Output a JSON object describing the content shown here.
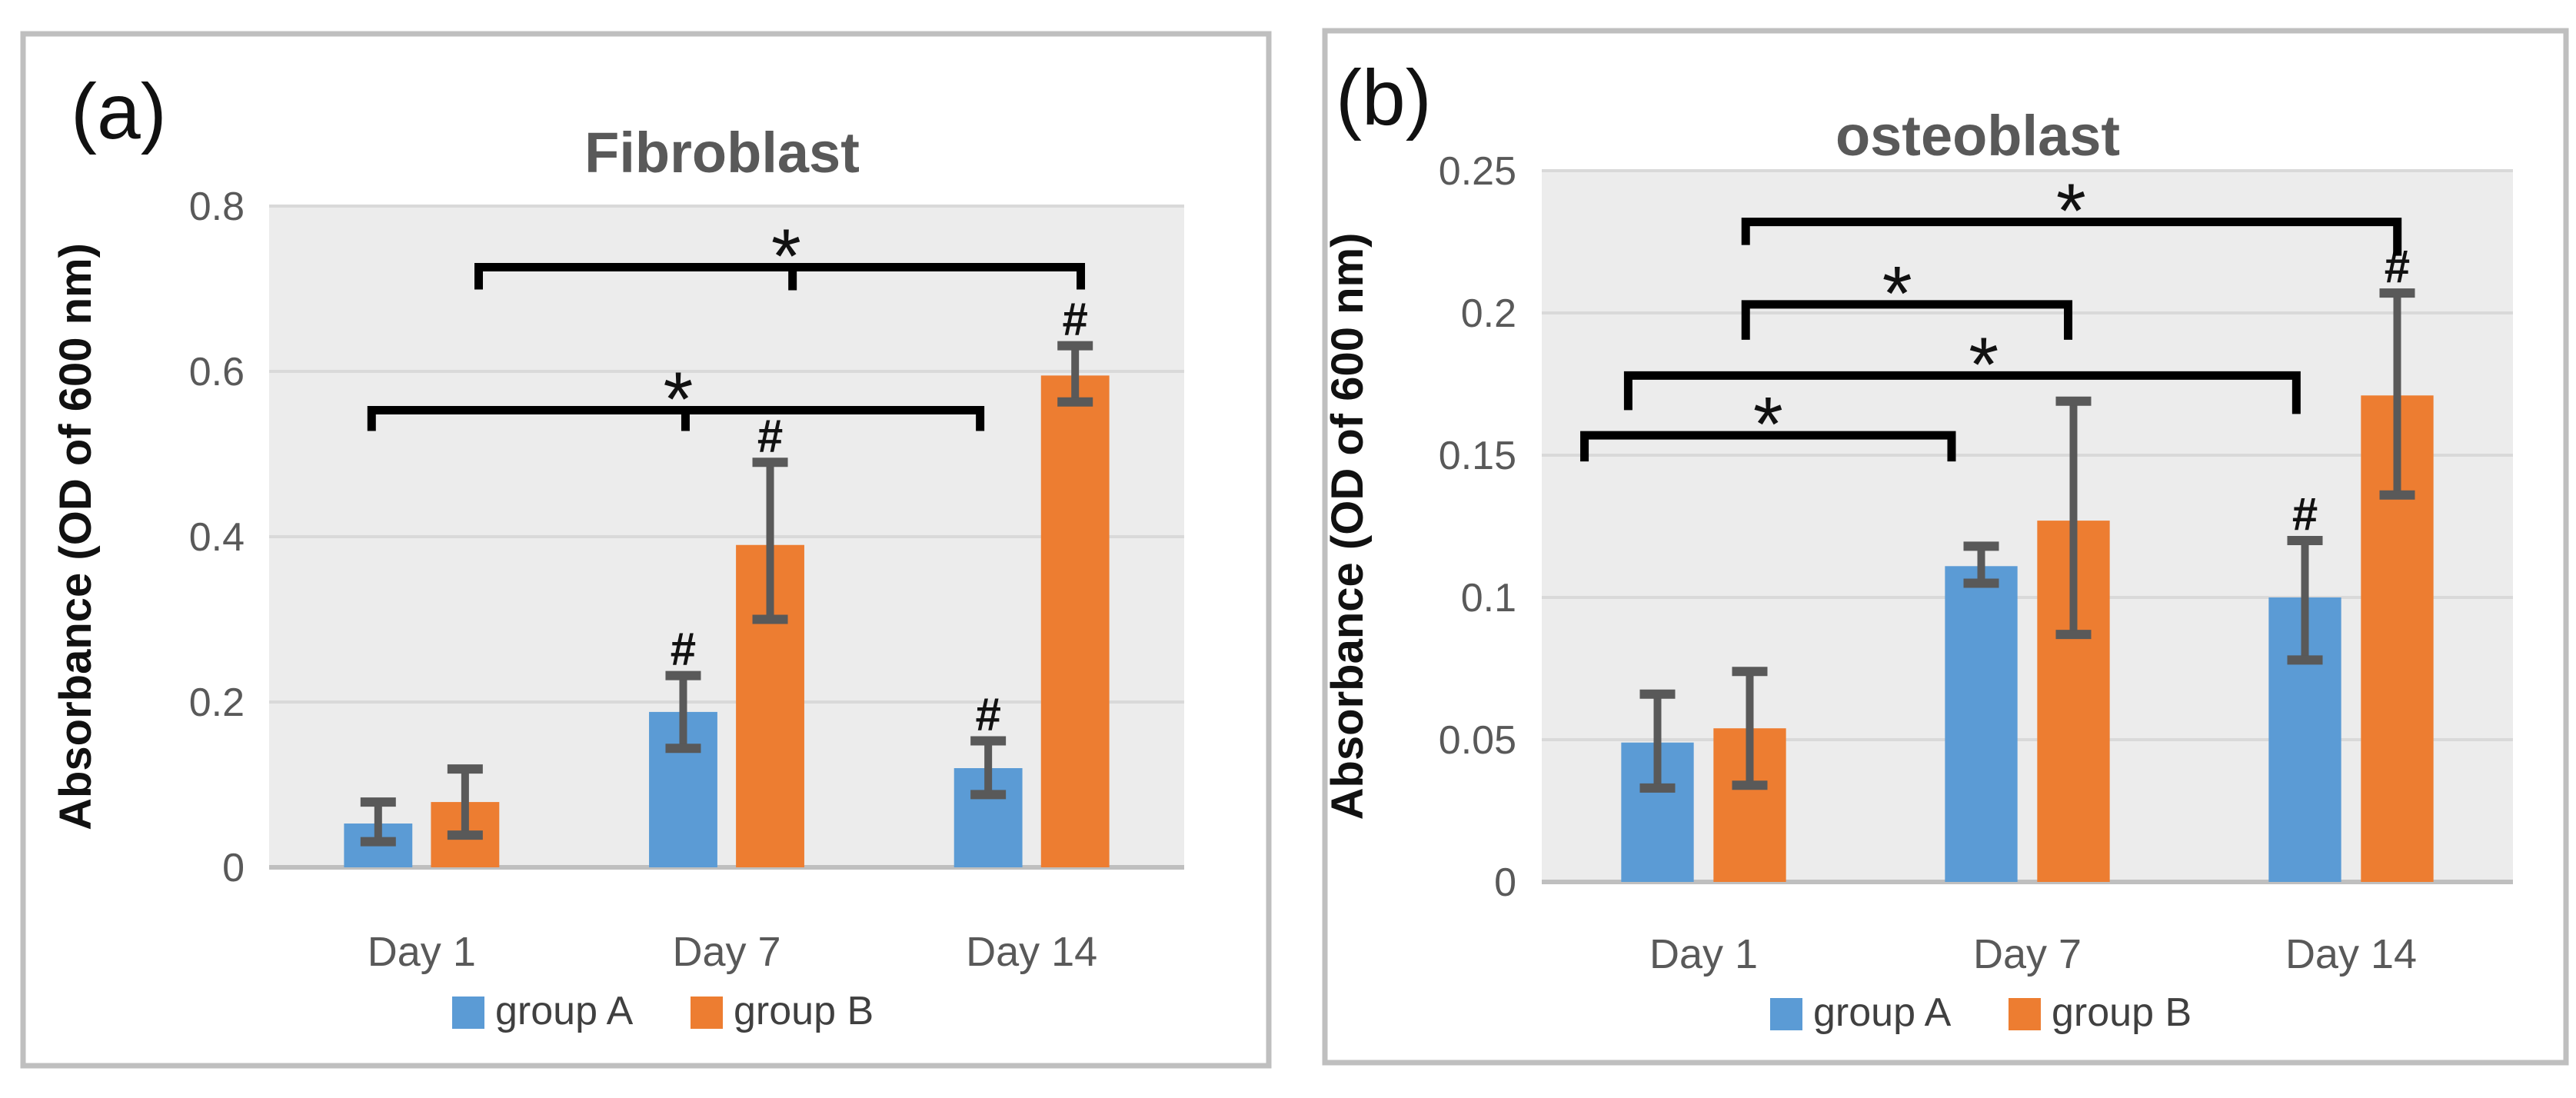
{
  "colors": {
    "series_a": "#5B9BD5",
    "series_b": "#ED7D31",
    "plot_bg": "#ECECEC",
    "gridline": "#D9D9D9",
    "axis_line": "#BFBFBF",
    "panel_border": "#BFBFBF",
    "tick_text": "#595959",
    "title_text": "#595959",
    "legend_text": "#404040",
    "annotation": "#111111",
    "error_bar": "#595959"
  },
  "legend": {
    "items": [
      {
        "label": "group A",
        "color": "#5B9BD5"
      },
      {
        "label": "group B",
        "color": "#ED7D31"
      }
    ]
  },
  "chart_data": [
    {
      "type": "bar",
      "panel_label": "(a)",
      "title": "Fibroblast",
      "ylabel": "Absorbance (OD of 600 nm)",
      "categories": [
        "Day 1",
        "Day 7",
        "Day 14"
      ],
      "ylim": [
        0,
        0.8
      ],
      "grid": true,
      "legend_position": "bottom",
      "yticks": [
        {
          "v": 0,
          "label": "0"
        },
        {
          "v": 0.2,
          "label": "0.2"
        },
        {
          "v": 0.4,
          "label": "0.4"
        },
        {
          "v": 0.6,
          "label": "0.6"
        },
        {
          "v": 0.8,
          "label": "0.8"
        }
      ],
      "series": [
        {
          "name": "group A",
          "color": "#5B9BD5",
          "values": [
            0.053,
            0.188,
            0.12
          ],
          "err_lo": [
            0.031,
            0.144,
            0.088
          ],
          "err_hi": [
            0.079,
            0.232,
            0.153
          ],
          "hash_marks": [
            false,
            true,
            true
          ]
        },
        {
          "name": "group B",
          "color": "#ED7D31",
          "values": [
            0.079,
            0.39,
            0.595
          ],
          "err_lo": [
            0.039,
            0.3,
            0.563
          ],
          "err_hi": [
            0.119,
            0.49,
            0.631
          ],
          "hash_marks": [
            false,
            true,
            true
          ]
        }
      ],
      "brackets": [
        {
          "x1": 0.229,
          "x2": 0.887,
          "y": 0.726,
          "tick1": 29,
          "tick2": 29,
          "mid_tick": 0.572,
          "mid_tick_len": 30,
          "label": "*",
          "label_x": 0.565
        },
        {
          "x1": 0.112,
          "x2": 0.777,
          "y": 0.553,
          "tick1": 27,
          "tick2": 27,
          "mid_tick": 0.455,
          "mid_tick_len": 27,
          "label": "*",
          "label_x": 0.447
        }
      ]
    },
    {
      "type": "bar",
      "panel_label": "(b)",
      "title": "osteoblast",
      "ylabel": "Absorbance (OD of 600 nm)",
      "categories": [
        "Day 1",
        "Day 7",
        "Day 14"
      ],
      "ylim": [
        0,
        0.25
      ],
      "grid": true,
      "legend_position": "bottom",
      "yticks": [
        {
          "v": 0,
          "label": "0"
        },
        {
          "v": 0.05,
          "label": "0.05"
        },
        {
          "v": 0.1,
          "label": "0.1"
        },
        {
          "v": 0.15,
          "label": "0.15"
        },
        {
          "v": 0.2,
          "label": "0.2"
        },
        {
          "v": 0.25,
          "label": "0.25"
        }
      ],
      "series": [
        {
          "name": "group A",
          "color": "#5B9BD5",
          "values": [
            0.049,
            0.111,
            0.1
          ],
          "err_lo": [
            0.033,
            0.105,
            0.078
          ],
          "err_hi": [
            0.066,
            0.118,
            0.12
          ],
          "hash_marks": [
            false,
            false,
            true
          ]
        },
        {
          "name": "group B",
          "color": "#ED7D31",
          "values": [
            0.054,
            0.127,
            0.171
          ],
          "err_lo": [
            0.034,
            0.087,
            0.136
          ],
          "err_hi": [
            0.074,
            0.169,
            0.207
          ],
          "hash_marks": [
            false,
            false,
            true
          ]
        }
      ],
      "brackets": [
        {
          "x1": 0.21,
          "x2": 0.881,
          "y": 0.232,
          "tick1": 30,
          "tick2": 44,
          "label": "*",
          "label_x": 0.545
        },
        {
          "x1": 0.21,
          "x2": 0.542,
          "y": 0.203,
          "tick1": 46,
          "tick2": 46,
          "label": "*",
          "label_x": 0.366
        },
        {
          "x1": 0.089,
          "x2": 0.777,
          "y": 0.178,
          "tick1": 45,
          "tick2": 50,
          "label": "*",
          "label_x": 0.455
        },
        {
          "x1": 0.044,
          "x2": 0.422,
          "y": 0.157,
          "tick1": 34,
          "tick2": 34,
          "label": "*",
          "label_x": 0.233
        }
      ]
    }
  ]
}
